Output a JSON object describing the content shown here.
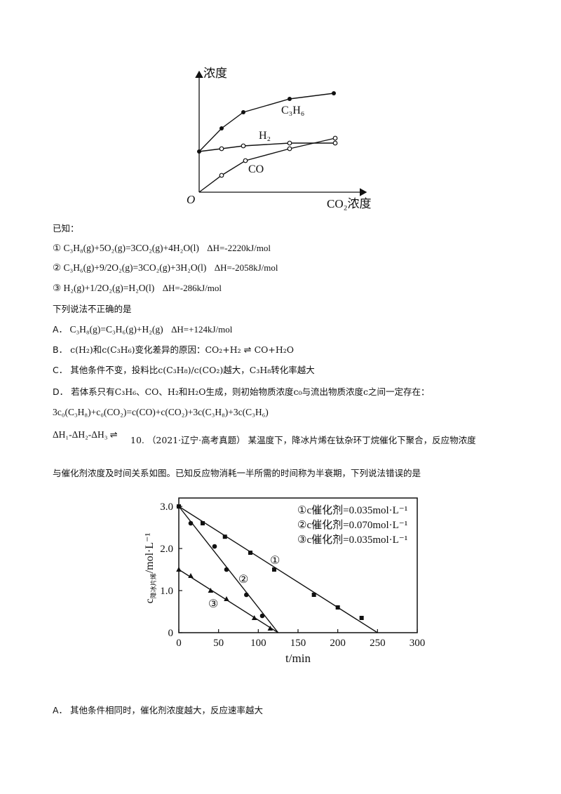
{
  "figure1": {
    "y_axis_label": "浓度",
    "x_axis_label": "CO₂浓度",
    "origin_label": "O",
    "series": [
      {
        "name": "C₃H₆",
        "marker": "filled"
      },
      {
        "name": "H₂",
        "marker": "open"
      },
      {
        "name": "CO",
        "marker": "open"
      }
    ]
  },
  "known_label": "已知：",
  "equations": [
    {
      "num": "①",
      "text": "C₃H₈(g)+5O₂(g)=3CO₂(g)+4H₂O(l)",
      "dh": "ΔH=-2220kJ/mol"
    },
    {
      "num": "②",
      "text": "C₃H₆(g)+9/2O₂(g)=3CO₂(g)+3H₂O(l)",
      "dh": "ΔH=-2058kJ/mol"
    },
    {
      "num": "③",
      "text": "H₂(g)+1/2O₂(g)=H₂O(l)",
      "dh": "ΔH=-286kJ/mol"
    }
  ],
  "question_prompt": "下列说法不正确的是",
  "options": {
    "A": {
      "label": "A．",
      "text": "C₃H₈(g)=C₃H₆(g)+H₂(g)",
      "dh": "ΔH=+124kJ/mol"
    },
    "B": {
      "label": "B．",
      "text_before": "c(H₂)和c(C₃H₆)变化差异的原因：CO₂+H₂",
      "arrow": "⇌",
      "text_after": "CO+H₂O"
    },
    "C": {
      "label": "C．",
      "text": "其他条件不变，投料比c(C₃H₈)/c(CO₂)越大，C₃H₈转化率越大"
    },
    "D": {
      "label": "D．",
      "text": "若体系只有C₃H₆、CO、H₂和H₂O生成，则初始物质浓度c₀与流出物质浓度c之间一定存在：",
      "formula": "3c₀(C₃H₈)+c₀(CO₂)=c(CO)+c(CO₂)+3c(C₃H₈)+3c(C₃H₆)"
    }
  },
  "stray_fragment": {
    "text": "ΔH₁-ΔH₂-ΔH₃",
    "arrow": "⇌"
  },
  "question10": {
    "number": "10.",
    "source": "（2021·辽宁·高考真题）",
    "text_line1": "某温度下，降冰片烯在钛杂环丁烷催化下聚合，反应物浓度",
    "text_line2": "与催化剂浓度及时间关系如图。已知反应物消耗一半所需的时间称为半衰期，下列说法错误的是"
  },
  "chart_data": {
    "type": "scatter",
    "title": "",
    "xlabel": "t/min",
    "ylabel": "c降冰片烯/mol·L⁻¹",
    "xlim": [
      0,
      300
    ],
    "ylim": [
      0,
      3.2
    ],
    "xticks": [
      "0",
      "50",
      "100",
      "150",
      "200",
      "250",
      "300"
    ],
    "yticks": [
      "0",
      "1.0",
      "2.0",
      "3.0"
    ],
    "grid": false,
    "legend_position": "top-right",
    "legend": [
      "①c催化剂=0.035mol·L⁻¹",
      "②c催化剂=0.070mol·L⁻¹",
      "③c催化剂=0.035mol·L⁻¹"
    ],
    "series": [
      {
        "name": "①",
        "marker": "square",
        "line": [
          [
            0,
            3.0
          ],
          [
            250,
            0
          ]
        ],
        "points": [
          [
            0,
            3.0
          ],
          [
            30,
            2.6
          ],
          [
            58,
            2.28
          ],
          [
            90,
            1.9
          ],
          [
            120,
            1.5
          ],
          [
            170,
            0.9
          ],
          [
            200,
            0.6
          ],
          [
            230,
            0.35
          ]
        ]
      },
      {
        "name": "②",
        "marker": "circle",
        "line": [
          [
            0,
            3.0
          ],
          [
            125,
            0
          ]
        ],
        "points": [
          [
            0,
            3.0
          ],
          [
            15,
            2.6
          ],
          [
            45,
            2.05
          ],
          [
            60,
            1.5
          ],
          [
            85,
            0.9
          ],
          [
            105,
            0.4
          ]
        ]
      },
      {
        "name": "③",
        "marker": "triangle",
        "line": [
          [
            0,
            1.5
          ],
          [
            125,
            0
          ]
        ],
        "points": [
          [
            0,
            1.5
          ],
          [
            15,
            1.35
          ],
          [
            40,
            1.0
          ],
          [
            60,
            0.8
          ],
          [
            95,
            0.35
          ],
          [
            115,
            0.1
          ]
        ]
      }
    ]
  },
  "answer_A": {
    "label": "A．",
    "text": "其他条件相同时，催化剂浓度越大，反应速率越大"
  }
}
